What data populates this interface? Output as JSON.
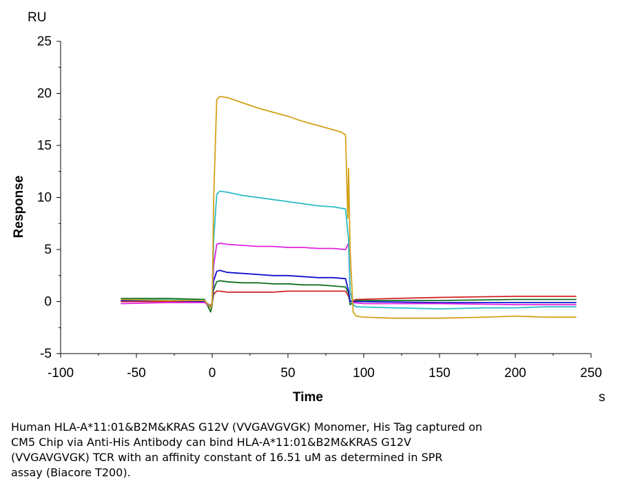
{
  "chart_data": {
    "type": "line",
    "unit_y": "RU",
    "xlabel": "Time",
    "ylabel": "Response",
    "x_unit": "s",
    "xlim": [
      -100,
      250
    ],
    "ylim": [
      -5,
      25
    ],
    "x_ticks": [
      -100,
      -50,
      0,
      50,
      100,
      150,
      200,
      250
    ],
    "y_ticks": [
      -5,
      0,
      5,
      10,
      15,
      20,
      25
    ],
    "grid": false,
    "series": [
      {
        "color": "#D4A017",
        "points": [
          [
            -60,
            0.2
          ],
          [
            -30,
            0.1
          ],
          [
            -5,
            0.1
          ],
          [
            -1,
            -0.6
          ],
          [
            0,
            -0.2
          ],
          [
            1,
            10
          ],
          [
            3,
            19.4
          ],
          [
            5,
            19.7
          ],
          [
            10,
            19.6
          ],
          [
            20,
            19.1
          ],
          [
            30,
            18.6
          ],
          [
            40,
            18.2
          ],
          [
            50,
            17.8
          ],
          [
            60,
            17.3
          ],
          [
            70,
            16.9
          ],
          [
            80,
            16.5
          ],
          [
            85,
            16.3
          ],
          [
            88,
            16.0
          ],
          [
            89.5,
            8
          ],
          [
            90,
            12.8
          ],
          [
            91,
            5
          ],
          [
            93,
            -1.0
          ],
          [
            95,
            -1.4
          ],
          [
            100,
            -1.5
          ],
          [
            120,
            -1.6
          ],
          [
            150,
            -1.6
          ],
          [
            180,
            -1.5
          ],
          [
            200,
            -1.4
          ],
          [
            220,
            -1.5
          ],
          [
            240,
            -1.5
          ]
        ]
      },
      {
        "color": "#28BCC8",
        "points": [
          [
            -60,
            0.2
          ],
          [
            -30,
            0.15
          ],
          [
            -5,
            0.1
          ],
          [
            -1,
            -0.5
          ],
          [
            0,
            -0.2
          ],
          [
            1,
            6
          ],
          [
            3,
            10.3
          ],
          [
            5,
            10.6
          ],
          [
            10,
            10.5
          ],
          [
            20,
            10.2
          ],
          [
            30,
            10.0
          ],
          [
            40,
            9.8
          ],
          [
            50,
            9.6
          ],
          [
            60,
            9.4
          ],
          [
            70,
            9.2
          ],
          [
            80,
            9.1
          ],
          [
            88,
            8.9
          ],
          [
            90,
            6.0
          ],
          [
            91,
            1.0
          ],
          [
            93,
            -0.3
          ],
          [
            95,
            -0.5
          ],
          [
            120,
            -0.6
          ],
          [
            150,
            -0.7
          ],
          [
            180,
            -0.6
          ],
          [
            200,
            -0.6
          ],
          [
            220,
            -0.5
          ],
          [
            240,
            -0.5
          ]
        ]
      },
      {
        "color": "#E020E0",
        "points": [
          [
            -60,
            -0.2
          ],
          [
            -30,
            -0.1
          ],
          [
            -5,
            -0.1
          ],
          [
            -1,
            -0.5
          ],
          [
            0,
            -0.2
          ],
          [
            1,
            3.5
          ],
          [
            3,
            5.5
          ],
          [
            5,
            5.6
          ],
          [
            10,
            5.5
          ],
          [
            20,
            5.4
          ],
          [
            30,
            5.3
          ],
          [
            40,
            5.3
          ],
          [
            50,
            5.2
          ],
          [
            60,
            5.2
          ],
          [
            70,
            5.1
          ],
          [
            80,
            5.1
          ],
          [
            88,
            5.0
          ],
          [
            90,
            5.6
          ],
          [
            91,
            1.0
          ],
          [
            93,
            -0.1
          ],
          [
            100,
            -0.2
          ],
          [
            150,
            -0.2
          ],
          [
            200,
            -0.3
          ],
          [
            240,
            -0.3
          ]
        ]
      },
      {
        "color": "#1010D0",
        "points": [
          [
            -60,
            0.1
          ],
          [
            -30,
            0.1
          ],
          [
            -5,
            0.0
          ],
          [
            -1,
            -0.6
          ],
          [
            0,
            -0.2
          ],
          [
            1,
            2.0
          ],
          [
            3,
            2.9
          ],
          [
            5,
            3.0
          ],
          [
            10,
            2.8
          ],
          [
            20,
            2.7
          ],
          [
            30,
            2.6
          ],
          [
            40,
            2.5
          ],
          [
            50,
            2.5
          ],
          [
            60,
            2.4
          ],
          [
            70,
            2.3
          ],
          [
            80,
            2.3
          ],
          [
            88,
            2.2
          ],
          [
            90,
            1.0
          ],
          [
            91,
            0.0
          ],
          [
            95,
            0.0
          ],
          [
            150,
            -0.1
          ],
          [
            200,
            -0.1
          ],
          [
            240,
            -0.1
          ]
        ]
      },
      {
        "color": "#107020",
        "points": [
          [
            -60,
            0.3
          ],
          [
            -30,
            0.3
          ],
          [
            -5,
            0.2
          ],
          [
            -1,
            -1.0
          ],
          [
            0,
            -0.3
          ],
          [
            1,
            1.2
          ],
          [
            3,
            1.9
          ],
          [
            5,
            2.0
          ],
          [
            10,
            1.9
          ],
          [
            20,
            1.8
          ],
          [
            30,
            1.8
          ],
          [
            40,
            1.7
          ],
          [
            50,
            1.7
          ],
          [
            60,
            1.6
          ],
          [
            70,
            1.6
          ],
          [
            80,
            1.5
          ],
          [
            88,
            1.4
          ],
          [
            90,
            0.8
          ],
          [
            91,
            -0.3
          ],
          [
            95,
            0.1
          ],
          [
            150,
            0.1
          ],
          [
            200,
            0.2
          ],
          [
            240,
            0.2
          ]
        ]
      },
      {
        "color": "#D02020",
        "points": [
          [
            -60,
            0.0
          ],
          [
            -30,
            0.0
          ],
          [
            -5,
            0.0
          ],
          [
            -1,
            -0.4
          ],
          [
            0,
            -0.1
          ],
          [
            1,
            0.7
          ],
          [
            3,
            1.0
          ],
          [
            5,
            1.0
          ],
          [
            10,
            0.9
          ],
          [
            20,
            0.9
          ],
          [
            30,
            0.9
          ],
          [
            40,
            0.9
          ],
          [
            50,
            1.0
          ],
          [
            60,
            1.0
          ],
          [
            70,
            1.0
          ],
          [
            80,
            1.0
          ],
          [
            88,
            1.0
          ],
          [
            90,
            0.5
          ],
          [
            91,
            0.0
          ],
          [
            95,
            0.2
          ],
          [
            120,
            0.3
          ],
          [
            150,
            0.4
          ],
          [
            200,
            0.5
          ],
          [
            240,
            0.5
          ]
        ]
      }
    ]
  },
  "caption": {
    "lines": [
      "Human HLA-A*11:01&B2M&KRAS G12V (VVGAVGVGK) Monomer, His Tag captured on",
      "CM5 Chip via Anti-His Antibody can bind HLA-A*11:01&B2M&KRAS G12V",
      "(VVGAVGVGK) TCR with an affinity constant of 16.51 uM as determined in SPR",
      "assay (Biacore T200)."
    ]
  }
}
